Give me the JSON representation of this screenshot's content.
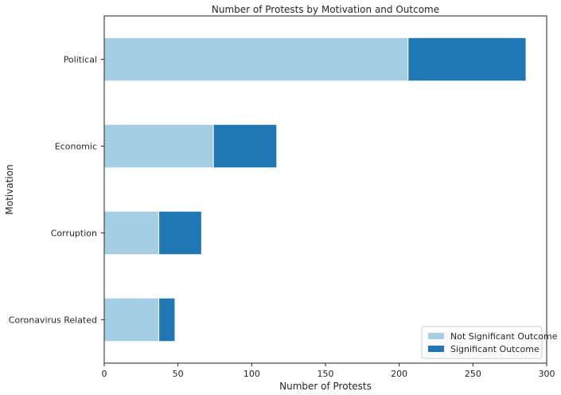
{
  "chart_data": {
    "type": "bar",
    "orientation": "horizontal",
    "stacked": true,
    "title": "Number of Protests by Motivation and Outcome",
    "xlabel": "Number of Protests",
    "ylabel": "Motivation",
    "categories": [
      "Coronavirus Related",
      "Corruption",
      "Economic",
      "Political"
    ],
    "series": [
      {
        "name": "Not Significant Outcome",
        "values": [
          37,
          37,
          74,
          206
        ],
        "color": "#a6cee3"
      },
      {
        "name": "Significant Outcome",
        "values": [
          11,
          29,
          43,
          80
        ],
        "color": "#1f78b4"
      }
    ],
    "xlim": [
      0,
      300
    ],
    "xticks": [
      0,
      50,
      100,
      150,
      200,
      250,
      300
    ],
    "grid": false,
    "legend_position": "lower-right"
  }
}
